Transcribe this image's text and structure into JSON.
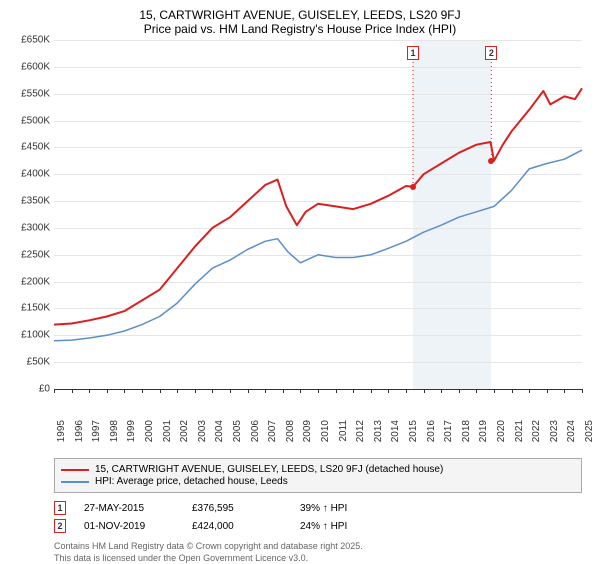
{
  "title_line1": "15, CARTWRIGHT AVENUE, GUISELEY, LEEDS, LS20 9FJ",
  "title_line2": "Price paid vs. HM Land Registry's House Price Index (HPI)",
  "yaxis": {
    "min": 0,
    "max": 650000,
    "step": 50000,
    "labels": [
      "£0",
      "£50K",
      "£100K",
      "£150K",
      "£200K",
      "£250K",
      "£300K",
      "£350K",
      "£400K",
      "£450K",
      "£500K",
      "£550K",
      "£600K",
      "£650K"
    ]
  },
  "xaxis": {
    "min": 1995,
    "max": 2025,
    "labels": [
      "1995",
      "1996",
      "1997",
      "1998",
      "1999",
      "2000",
      "2001",
      "2002",
      "2003",
      "2004",
      "2005",
      "2006",
      "2007",
      "2008",
      "2009",
      "2010",
      "2011",
      "2012",
      "2013",
      "2014",
      "2015",
      "2016",
      "2017",
      "2018",
      "2019",
      "2020",
      "2021",
      "2022",
      "2023",
      "2024",
      "2025"
    ]
  },
  "shade": {
    "from": 2015.4,
    "to": 2019.85
  },
  "series": {
    "price": {
      "label": "15, CARTWRIGHT AVENUE, GUISELEY, LEEDS, LS20 9FJ (detached house)",
      "color": "#d92020",
      "width": 2,
      "data": [
        [
          1995,
          120000
        ],
        [
          1996,
          122000
        ],
        [
          1997,
          128000
        ],
        [
          1998,
          135000
        ],
        [
          1999,
          145000
        ],
        [
          2000,
          165000
        ],
        [
          2001,
          185000
        ],
        [
          2002,
          225000
        ],
        [
          2003,
          265000
        ],
        [
          2004,
          300000
        ],
        [
          2005,
          320000
        ],
        [
          2006,
          350000
        ],
        [
          2007,
          380000
        ],
        [
          2007.7,
          390000
        ],
        [
          2008.2,
          340000
        ],
        [
          2008.8,
          305000
        ],
        [
          2009.3,
          330000
        ],
        [
          2010,
          345000
        ],
        [
          2011,
          340000
        ],
        [
          2012,
          335000
        ],
        [
          2013,
          345000
        ],
        [
          2014,
          360000
        ],
        [
          2015,
          378000
        ],
        [
          2015.4,
          376595
        ],
        [
          2016,
          400000
        ],
        [
          2017,
          420000
        ],
        [
          2018,
          440000
        ],
        [
          2019,
          455000
        ],
        [
          2019.8,
          460000
        ],
        [
          2020,
          425000
        ],
        [
          2020.5,
          455000
        ],
        [
          2021,
          480000
        ],
        [
          2022,
          520000
        ],
        [
          2022.8,
          555000
        ],
        [
          2023.2,
          530000
        ],
        [
          2024,
          545000
        ],
        [
          2024.6,
          540000
        ],
        [
          2025,
          560000
        ]
      ]
    },
    "hpi": {
      "label": "HPI: Average price, detached house, Leeds",
      "color": "#5b8fc7",
      "width": 1.5,
      "data": [
        [
          1995,
          90000
        ],
        [
          1996,
          91000
        ],
        [
          1997,
          95000
        ],
        [
          1998,
          100000
        ],
        [
          1999,
          108000
        ],
        [
          2000,
          120000
        ],
        [
          2001,
          135000
        ],
        [
          2002,
          160000
        ],
        [
          2003,
          195000
        ],
        [
          2004,
          225000
        ],
        [
          2005,
          240000
        ],
        [
          2006,
          260000
        ],
        [
          2007,
          275000
        ],
        [
          2007.7,
          280000
        ],
        [
          2008.3,
          255000
        ],
        [
          2009,
          235000
        ],
        [
          2010,
          250000
        ],
        [
          2011,
          245000
        ],
        [
          2012,
          245000
        ],
        [
          2013,
          250000
        ],
        [
          2014,
          262000
        ],
        [
          2015,
          275000
        ],
        [
          2016,
          292000
        ],
        [
          2017,
          305000
        ],
        [
          2018,
          320000
        ],
        [
          2019,
          330000
        ],
        [
          2020,
          340000
        ],
        [
          2021,
          370000
        ],
        [
          2022,
          410000
        ],
        [
          2023,
          420000
        ],
        [
          2024,
          428000
        ],
        [
          2025,
          445000
        ]
      ]
    }
  },
  "markers": [
    {
      "n": "1",
      "x": 2015.4,
      "color": "#d92020",
      "date": "27-MAY-2015",
      "price": "£376,595",
      "delta": "39% ↑ HPI",
      "y_dot": 376595
    },
    {
      "n": "2",
      "x": 2019.85,
      "color": "#d92020",
      "date": "01-NOV-2019",
      "price": "£424,000",
      "delta": "24% ↑ HPI",
      "y_dot": 424000
    }
  ],
  "footer": {
    "line1": "Contains HM Land Registry data © Crown copyright and database right 2025.",
    "line2": "This data is licensed under the Open Government Licence v3.0."
  },
  "colors": {
    "grid": "#e6e6e6",
    "shade": "#eef3f8"
  }
}
